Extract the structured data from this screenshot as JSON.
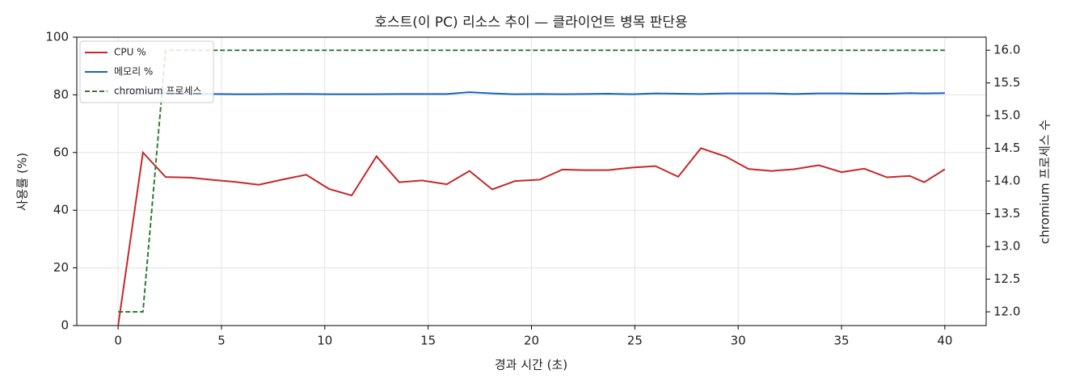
{
  "chart_data": {
    "type": "line",
    "title": "호스트(이 PC) 리소스 추이 — 클라이언트 병목 판단용",
    "x_label": "경과 시간 (초)",
    "y_label": "사용률 (%)",
    "y2_label": "chromium 프로세스 수",
    "x": [
      0,
      1.2,
      2.3,
      3.5,
      4.6,
      5.7,
      6.8,
      8.0,
      9.1,
      10.2,
      11.3,
      12.5,
      13.6,
      14.7,
      15.9,
      17.0,
      18.1,
      19.2,
      20.4,
      21.5,
      22.6,
      23.7,
      24.9,
      26.0,
      27.1,
      28.2,
      29.4,
      30.5,
      31.6,
      32.7,
      33.9,
      35.0,
      36.1,
      37.2,
      38.3,
      39.0,
      40.0
    ],
    "series": [
      {
        "name": "CPU %",
        "color": "#c62828",
        "dash": false,
        "values": [
          0,
          60,
          51.5,
          51.3,
          50.5,
          49.8,
          48.8,
          50.7,
          52.3,
          47.4,
          45.1,
          58.7,
          49.7,
          50.3,
          49,
          53.6,
          47.2,
          50.1,
          50.6,
          54.1,
          53.9,
          53.9,
          54.8,
          55.3,
          51.6,
          61.5,
          58.6,
          54.3,
          53.6,
          54.2,
          55.6,
          53.2,
          54.4,
          51.4,
          51.9,
          49.7,
          54.2
        ]
      },
      {
        "name": "메모리 %",
        "color": "#1565c0",
        "dash": false,
        "values": [
          80.5,
          80.5,
          80.6,
          80.4,
          80.3,
          80.2,
          80.2,
          80.3,
          80.3,
          80.2,
          80.2,
          80.2,
          80.3,
          80.3,
          80.3,
          80.9,
          80.5,
          80.2,
          80.3,
          80.2,
          80.3,
          80.4,
          80.2,
          80.5,
          80.4,
          80.3,
          80.5,
          80.5,
          80.5,
          80.3,
          80.5,
          80.5,
          80.4,
          80.4,
          80.6,
          80.5,
          80.6
        ]
      },
      {
        "name": "chromium 프로세스",
        "color": "#2e7d32",
        "dash": true,
        "axis": "y2",
        "values": [
          12,
          12,
          16,
          16,
          16,
          16,
          16,
          16,
          16,
          16,
          16,
          16,
          16,
          16,
          16,
          16,
          16,
          16,
          16,
          16,
          16,
          16,
          16,
          16,
          16,
          16,
          16,
          16,
          16,
          16,
          16,
          16,
          16,
          16,
          16,
          16,
          16
        ]
      }
    ],
    "xlim": [
      -2,
      42
    ],
    "xticks": [
      0,
      5,
      10,
      15,
      20,
      25,
      30,
      35,
      40
    ],
    "ylim": [
      0,
      100
    ],
    "yticks": [
      0,
      20,
      40,
      60,
      80,
      100
    ],
    "y2lim": [
      11.79,
      16.2
    ],
    "y2ticks": [
      {
        "value": 12,
        "label": "12.0"
      },
      12.5,
      {
        "value": 13,
        "label": "13.0"
      },
      13.5,
      {
        "value": 14,
        "label": "14.0"
      },
      14.5,
      {
        "value": 15,
        "label": "15.0"
      },
      15.5,
      {
        "value": 16,
        "label": "16.0"
      }
    ],
    "grid": true,
    "legend": "upper left"
  }
}
